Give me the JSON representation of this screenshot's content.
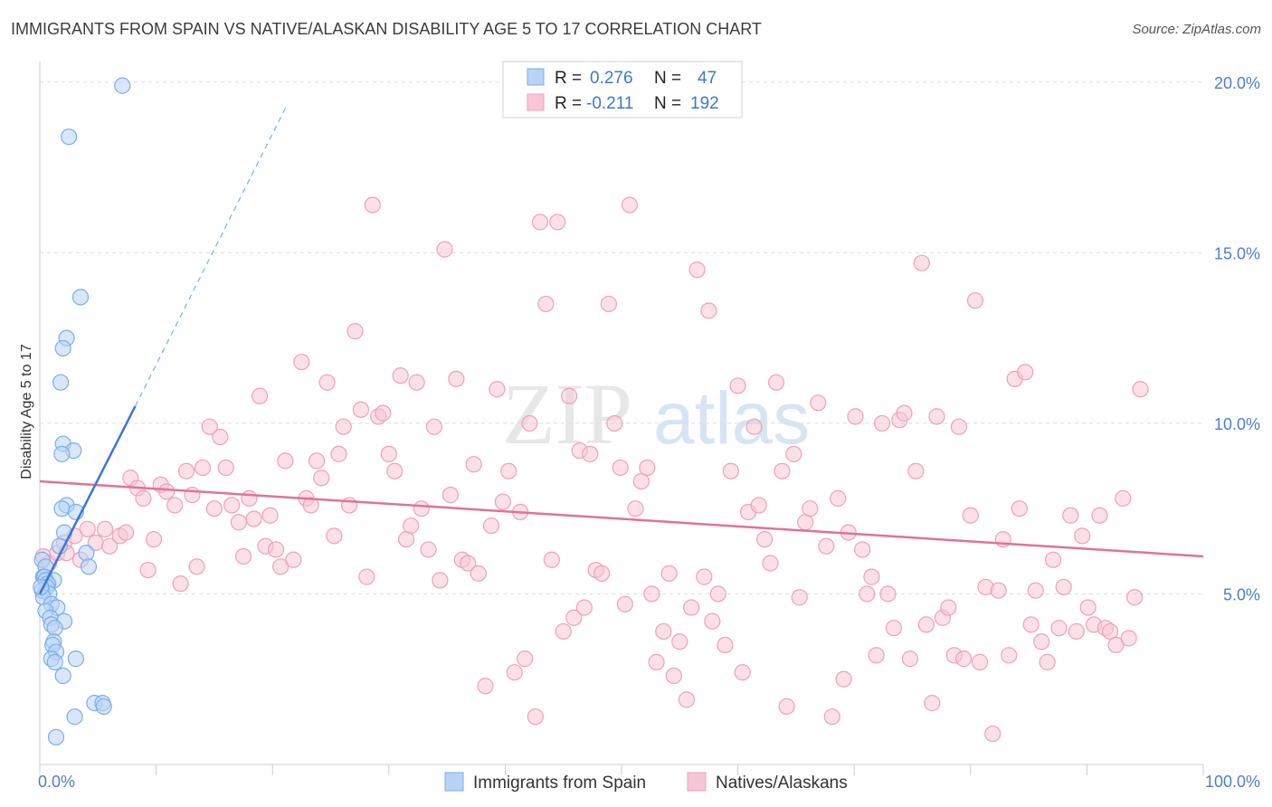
{
  "title": "IMMIGRANTS FROM SPAIN VS NATIVE/ALASKAN DISABILITY AGE 5 TO 17 CORRELATION CHART",
  "source": "Source: ZipAtlas.com",
  "watermark": {
    "zip": "ZIP",
    "atlas": "atlas"
  },
  "colors": {
    "blue_fill": "#b8d3f5",
    "blue_stroke": "#7aaee8",
    "blue_line": "#3a78d0",
    "pink_fill": "#f7c6d6",
    "pink_stroke": "#eea0b9",
    "pink_line": "#e2719a",
    "grid": "#dcdcdc",
    "axis_text": "#4a7fcf"
  },
  "legend": {
    "r_label": "R =",
    "n_label": "N =",
    "series": [
      {
        "name": "Immigrants from Spain",
        "r": "0.276",
        "n": "47",
        "color": "blue"
      },
      {
        "name": "Natives/Alaskans",
        "r": "-0.211",
        "n": "192",
        "color": "pink"
      }
    ]
  },
  "chart_data": {
    "type": "scatter",
    "title": "IMMIGRANTS FROM SPAIN VS NATIVE/ALASKAN DISABILITY AGE 5 TO 17 CORRELATION CHART",
    "xlabel": "",
    "ylabel": "Disability Age 5 to 17",
    "xlim": [
      0,
      100
    ],
    "ylim": [
      0,
      20.5
    ],
    "x_tick_labels": [
      "0.0%",
      "100.0%"
    ],
    "y_ticks": [
      5,
      10,
      15,
      20
    ],
    "y_tick_labels": [
      "5.0%",
      "10.0%",
      "15.0%",
      "20.0%"
    ],
    "series": [
      {
        "name": "Immigrants from Spain",
        "trend": {
          "x": [
            0,
            8.2
          ],
          "y": [
            5.0,
            10.5
          ],
          "dashed_to": [
            21.2,
            19.3
          ]
        },
        "points": [
          [
            7.1,
            19.9
          ],
          [
            2.5,
            18.4
          ],
          [
            3.5,
            13.7
          ],
          [
            2.3,
            12.5
          ],
          [
            2.0,
            12.2
          ],
          [
            1.8,
            11.2
          ],
          [
            2.0,
            9.4
          ],
          [
            2.9,
            9.2
          ],
          [
            1.9,
            9.1
          ],
          [
            2.3,
            7.6
          ],
          [
            1.9,
            7.5
          ],
          [
            3.1,
            7.4
          ],
          [
            2.1,
            6.8
          ],
          [
            1.7,
            6.4
          ],
          [
            4.0,
            6.2
          ],
          [
            0.2,
            6.0
          ],
          [
            0.5,
            5.8
          ],
          [
            4.2,
            5.8
          ],
          [
            0.3,
            5.5
          ],
          [
            0.4,
            5.5
          ],
          [
            1.2,
            5.4
          ],
          [
            0.5,
            5.4
          ],
          [
            0.7,
            5.3
          ],
          [
            0.6,
            5.2
          ],
          [
            0.2,
            5.1
          ],
          [
            0.8,
            5.0
          ],
          [
            0.3,
            4.9
          ],
          [
            1.0,
            4.7
          ],
          [
            1.5,
            4.6
          ],
          [
            0.5,
            4.5
          ],
          [
            0.9,
            4.3
          ],
          [
            2.1,
            4.2
          ],
          [
            1.0,
            4.1
          ],
          [
            1.3,
            4.0
          ],
          [
            1.2,
            3.6
          ],
          [
            1.1,
            3.5
          ],
          [
            1.4,
            3.3
          ],
          [
            3.1,
            3.1
          ],
          [
            1.0,
            3.1
          ],
          [
            1.3,
            3.0
          ],
          [
            2.0,
            2.6
          ],
          [
            4.7,
            1.8
          ],
          [
            5.4,
            1.8
          ],
          [
            5.5,
            1.7
          ],
          [
            3.0,
            1.4
          ],
          [
            1.4,
            0.8
          ],
          [
            0.1,
            5.2
          ]
        ]
      },
      {
        "name": "Natives/Alaskans",
        "trend": {
          "x": [
            0,
            100
          ],
          "y": [
            8.3,
            6.1
          ]
        },
        "points": [
          [
            0.3,
            6.1
          ],
          [
            0.8,
            5.9
          ],
          [
            1.5,
            6.2
          ],
          [
            2.1,
            6.5
          ],
          [
            2.3,
            6.2
          ],
          [
            3.0,
            6.7
          ],
          [
            3.5,
            6.0
          ],
          [
            4.1,
            6.9
          ],
          [
            4.8,
            6.5
          ],
          [
            5.6,
            6.9
          ],
          [
            6.0,
            6.4
          ],
          [
            6.9,
            6.7
          ],
          [
            7.4,
            6.8
          ],
          [
            7.8,
            8.4
          ],
          [
            8.4,
            8.1
          ],
          [
            8.9,
            7.8
          ],
          [
            9.3,
            5.7
          ],
          [
            9.8,
            6.6
          ],
          [
            10.4,
            8.2
          ],
          [
            10.9,
            8.0
          ],
          [
            11.6,
            7.6
          ],
          [
            12.1,
            5.3
          ],
          [
            12.6,
            8.6
          ],
          [
            13.1,
            7.9
          ],
          [
            13.5,
            5.8
          ],
          [
            14.0,
            8.7
          ],
          [
            14.6,
            9.9
          ],
          [
            15.0,
            7.5
          ],
          [
            15.5,
            9.6
          ],
          [
            16.0,
            8.7
          ],
          [
            16.5,
            7.6
          ],
          [
            17.1,
            7.1
          ],
          [
            17.5,
            6.1
          ],
          [
            18.0,
            7.8
          ],
          [
            18.4,
            7.2
          ],
          [
            18.9,
            10.8
          ],
          [
            19.4,
            6.4
          ],
          [
            19.8,
            7.3
          ],
          [
            20.3,
            6.3
          ],
          [
            20.7,
            5.8
          ],
          [
            21.1,
            8.9
          ],
          [
            21.8,
            6.0
          ],
          [
            22.5,
            11.8
          ],
          [
            22.9,
            7.8
          ],
          [
            23.3,
            7.6
          ],
          [
            23.8,
            8.9
          ],
          [
            24.2,
            8.4
          ],
          [
            24.7,
            11.2
          ],
          [
            25.3,
            6.7
          ],
          [
            25.7,
            9.1
          ],
          [
            26.1,
            9.9
          ],
          [
            26.6,
            7.6
          ],
          [
            27.1,
            12.7
          ],
          [
            27.6,
            10.4
          ],
          [
            28.1,
            5.5
          ],
          [
            28.6,
            16.4
          ],
          [
            29.1,
            10.2
          ],
          [
            29.5,
            10.3
          ],
          [
            30.0,
            9.1
          ],
          [
            30.5,
            8.6
          ],
          [
            31.0,
            11.4
          ],
          [
            31.5,
            6.6
          ],
          [
            31.9,
            7.0
          ],
          [
            32.4,
            11.2
          ],
          [
            32.8,
            7.5
          ],
          [
            33.4,
            6.3
          ],
          [
            33.9,
            9.9
          ],
          [
            34.4,
            5.4
          ],
          [
            34.8,
            15.1
          ],
          [
            35.3,
            7.9
          ],
          [
            35.8,
            11.3
          ],
          [
            36.3,
            6.0
          ],
          [
            36.8,
            5.9
          ],
          [
            37.3,
            8.8
          ],
          [
            37.7,
            5.6
          ],
          [
            38.3,
            2.3
          ],
          [
            38.8,
            7.0
          ],
          [
            39.3,
            11.0
          ],
          [
            39.8,
            7.7
          ],
          [
            40.3,
            8.6
          ],
          [
            40.8,
            2.7
          ],
          [
            41.3,
            7.4
          ],
          [
            41.7,
            3.1
          ],
          [
            42.1,
            10.0
          ],
          [
            42.6,
            1.4
          ],
          [
            43.0,
            15.9
          ],
          [
            43.5,
            13.5
          ],
          [
            44.0,
            6.0
          ],
          [
            44.5,
            15.9
          ],
          [
            45.0,
            3.9
          ],
          [
            45.5,
            10.8
          ],
          [
            45.9,
            4.3
          ],
          [
            46.4,
            9.2
          ],
          [
            46.8,
            4.6
          ],
          [
            47.3,
            9.1
          ],
          [
            47.8,
            5.7
          ],
          [
            48.3,
            5.6
          ],
          [
            48.9,
            13.5
          ],
          [
            49.4,
            10.0
          ],
          [
            49.9,
            8.7
          ],
          [
            50.3,
            4.7
          ],
          [
            50.7,
            16.4
          ],
          [
            51.2,
            7.5
          ],
          [
            51.7,
            8.3
          ],
          [
            52.2,
            8.7
          ],
          [
            52.6,
            5.0
          ],
          [
            53.0,
            3.0
          ],
          [
            53.6,
            3.9
          ],
          [
            54.1,
            5.6
          ],
          [
            54.5,
            2.6
          ],
          [
            55.0,
            3.6
          ],
          [
            55.6,
            1.9
          ],
          [
            56.0,
            4.6
          ],
          [
            56.5,
            14.5
          ],
          [
            57.1,
            5.5
          ],
          [
            57.5,
            13.3
          ],
          [
            57.8,
            4.2
          ],
          [
            58.3,
            5.0
          ],
          [
            58.9,
            3.5
          ],
          [
            59.4,
            8.6
          ],
          [
            60.0,
            11.1
          ],
          [
            60.4,
            2.7
          ],
          [
            60.9,
            7.4
          ],
          [
            61.4,
            9.9
          ],
          [
            61.8,
            7.6
          ],
          [
            62.3,
            6.6
          ],
          [
            62.8,
            5.9
          ],
          [
            63.3,
            11.2
          ],
          [
            63.8,
            8.6
          ],
          [
            64.2,
            1.7
          ],
          [
            64.8,
            9.1
          ],
          [
            65.3,
            4.9
          ],
          [
            65.8,
            7.1
          ],
          [
            66.2,
            7.5
          ],
          [
            66.9,
            10.6
          ],
          [
            67.6,
            6.4
          ],
          [
            68.1,
            1.4
          ],
          [
            68.6,
            7.8
          ],
          [
            69.1,
            2.5
          ],
          [
            69.5,
            6.8
          ],
          [
            70.1,
            10.2
          ],
          [
            70.7,
            6.3
          ],
          [
            71.1,
            5.0
          ],
          [
            71.5,
            5.5
          ],
          [
            71.9,
            3.2
          ],
          [
            72.4,
            10.0
          ],
          [
            72.9,
            5.0
          ],
          [
            73.4,
            4.0
          ],
          [
            73.9,
            10.1
          ],
          [
            74.3,
            10.3
          ],
          [
            74.8,
            3.1
          ],
          [
            75.3,
            8.6
          ],
          [
            75.8,
            14.7
          ],
          [
            76.2,
            4.1
          ],
          [
            76.7,
            1.8
          ],
          [
            77.1,
            10.2
          ],
          [
            77.6,
            4.3
          ],
          [
            78.1,
            4.6
          ],
          [
            78.6,
            3.2
          ],
          [
            79.0,
            9.9
          ],
          [
            79.4,
            3.1
          ],
          [
            80.0,
            7.3
          ],
          [
            80.4,
            13.6
          ],
          [
            80.8,
            3.0
          ],
          [
            81.3,
            5.2
          ],
          [
            81.9,
            0.9
          ],
          [
            82.4,
            5.1
          ],
          [
            82.8,
            6.6
          ],
          [
            83.3,
            3.2
          ],
          [
            83.8,
            11.3
          ],
          [
            84.2,
            7.5
          ],
          [
            84.7,
            11.5
          ],
          [
            85.2,
            4.1
          ],
          [
            85.6,
            5.1
          ],
          [
            86.1,
            3.6
          ],
          [
            86.6,
            3.0
          ],
          [
            87.1,
            6.0
          ],
          [
            87.6,
            4.0
          ],
          [
            88.0,
            5.2
          ],
          [
            88.6,
            7.3
          ],
          [
            89.1,
            3.9
          ],
          [
            89.6,
            6.7
          ],
          [
            90.1,
            4.6
          ],
          [
            90.6,
            4.1
          ],
          [
            91.1,
            7.3
          ],
          [
            91.6,
            4.0
          ],
          [
            92.0,
            3.9
          ],
          [
            92.5,
            3.5
          ],
          [
            93.1,
            7.8
          ],
          [
            93.6,
            3.7
          ],
          [
            94.1,
            4.9
          ],
          [
            94.6,
            11.0
          ]
        ]
      }
    ]
  }
}
